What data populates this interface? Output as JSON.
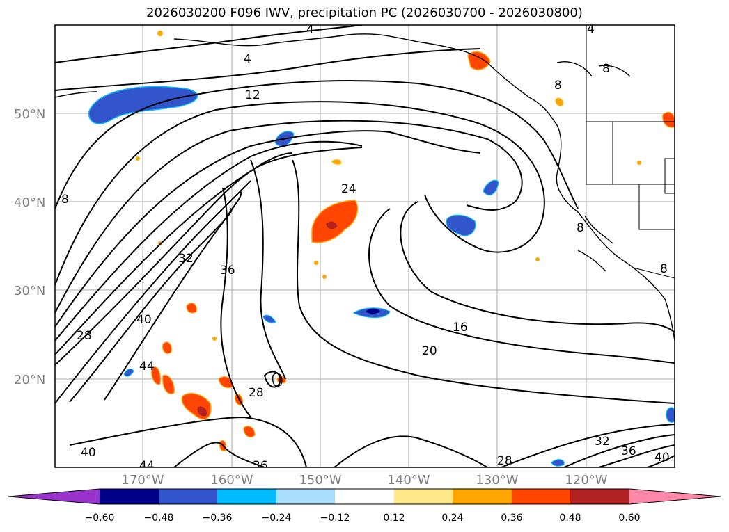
{
  "title": "2026030200 F096 IWV, precipitation PC (2026030700 - 2026030800)",
  "lat_labels": [
    "20°N",
    "30°N",
    "40°N",
    "50°N"
  ],
  "lon_labels": [
    "170°W",
    "160°W",
    "150°W",
    "140°W",
    "130°W",
    "120°W"
  ],
  "contour_labels": [
    "4",
    "4",
    "8",
    "8",
    "8",
    "12",
    "16",
    "20",
    "24",
    "28",
    "28",
    "28",
    "32",
    "32",
    "36",
    "36",
    "36",
    "40",
    "40",
    "40",
    "44",
    "44",
    "4",
    "8",
    "8"
  ],
  "colorbar": {
    "ticks": [
      "−0.60",
      "−0.48",
      "−0.36",
      "−0.24",
      "−0.12",
      "0.12",
      "0.24",
      "0.36",
      "0.48",
      "0.60"
    ],
    "colors": [
      "#9933cc",
      "#000088",
      "#3355cc",
      "#00bbff",
      "#aaddff",
      "#ffffff",
      "#ffe88a",
      "#ffa500",
      "#ff4500",
      "#b22222",
      "#ff88aa"
    ]
  },
  "colors": {
    "grid": "#aaaaaa",
    "lat_lon_label": "#808080",
    "contour": "#000000"
  }
}
